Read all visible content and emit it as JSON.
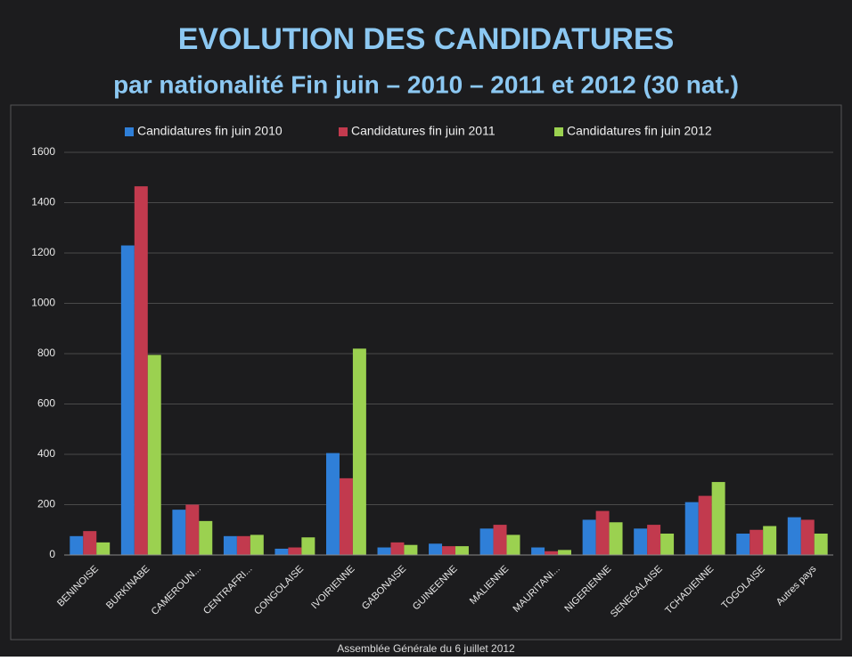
{
  "chart_data": {
    "type": "bar",
    "title": "EVOLUTION DES CANDIDATURES",
    "subtitle": "par nationalité Fin juin – 2010 – 2011 et 2012 (30 nat.)",
    "footer": "Assemblée Générale du 6 juillet 2012",
    "categories": [
      "BENINOISE",
      "BURKINABE",
      "CAMEROUN...",
      "CENTRAFRI...",
      "CONGOLAISE",
      "IVOIRIENNE",
      "GABONAISE",
      "GUINEENNE",
      "MALIENNE",
      "MAURITANI...",
      "NIGERIENNE",
      "SENEGALAISE",
      "TCHADIENNE",
      "TOGOLAISE",
      "Autres pays"
    ],
    "series": [
      {
        "name": "Candidatures fin juin 2010",
        "color": "#2f7fd8",
        "values": [
          75,
          1230,
          180,
          75,
          25,
          405,
          30,
          45,
          105,
          30,
          140,
          105,
          210,
          85,
          150
        ]
      },
      {
        "name": "Candidatures fin juin 2011",
        "color": "#c23a4e",
        "values": [
          95,
          1465,
          200,
          75,
          30,
          305,
          50,
          35,
          120,
          15,
          175,
          120,
          235,
          100,
          140
        ]
      },
      {
        "name": "Candidatures fin juin 2012",
        "color": "#9bd150",
        "values": [
          50,
          795,
          135,
          80,
          70,
          820,
          40,
          35,
          80,
          20,
          130,
          85,
          290,
          115,
          85
        ]
      }
    ],
    "ylim": [
      0,
      1600
    ],
    "yticks": [
      0,
      200,
      400,
      600,
      800,
      1000,
      1200,
      1400,
      1600
    ],
    "grid": true,
    "legend": "top"
  }
}
